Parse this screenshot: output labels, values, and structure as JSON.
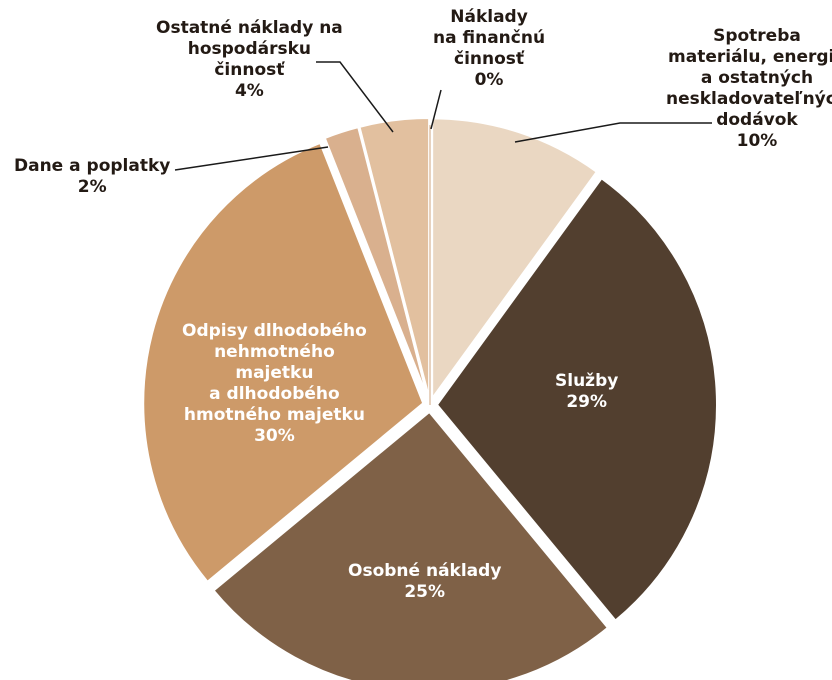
{
  "chart_data": {
    "type": "pie",
    "slices": [
      {
        "name": "Spotreba materiálu, energie a ostatných neskladovateľných dodávok",
        "label_lines": [
          "Spotreba",
          "materiálu, energie",
          "a ostatných",
          "neskladovateľných",
          "dodávok"
        ],
        "value": 10,
        "value_label": "10%",
        "color": "#ead7c2"
      },
      {
        "name": "Služby",
        "label_lines": [
          "Služby"
        ],
        "value": 29,
        "value_label": "29%",
        "color": "#523f2f"
      },
      {
        "name": "Osobné náklady",
        "label_lines": [
          "Osobné náklady"
        ],
        "value": 25,
        "value_label": "25%",
        "color": "#7f6147"
      },
      {
        "name": "Odpisy dlhodobého nehmotného majetku a dlhodobého hmotného majetku",
        "label_lines": [
          "Odpisy dlhodobého",
          "nehmotného",
          "majetku",
          "a dlhodobého",
          "hmotného majetku"
        ],
        "value": 30,
        "value_label": "30%",
        "color": "#cd9a69"
      },
      {
        "name": "Dane a poplatky",
        "label_lines": [
          "Dane a poplatky"
        ],
        "value": 2,
        "value_label": "2%",
        "color": "#d9b08e"
      },
      {
        "name": "Ostatné náklady na hospodársku činnosť",
        "label_lines": [
          "Ostatné náklady na",
          "hospodársku",
          "činnosť"
        ],
        "value": 4,
        "value_label": "4%",
        "color": "#e2c09f"
      },
      {
        "name": "Náklady na finančnú činnosť",
        "label_lines": [
          "Náklady",
          "na finančnú",
          "činnosť"
        ],
        "value": 0,
        "value_label": "0%",
        "color": "#cfa57f"
      }
    ]
  }
}
